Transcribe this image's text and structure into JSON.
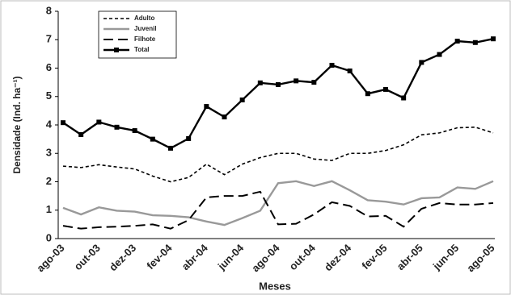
{
  "chart_data": {
    "type": "line",
    "x_label": "Meses",
    "y_label": "Densidade (Ind. ha⁻¹)",
    "categories": [
      "ago-03",
      null,
      "out-03",
      null,
      "dez-03",
      null,
      "fev-04",
      null,
      "abr-04",
      null,
      "jun-04",
      null,
      "ago-04",
      null,
      "out-04",
      null,
      "dez-04",
      null,
      "fev-05",
      null,
      "abr-05",
      null,
      "jun-05",
      null,
      "ago-05"
    ],
    "ylim": [
      0,
      8
    ],
    "yticks": [
      0,
      1,
      2,
      3,
      4,
      5,
      6,
      7,
      8
    ],
    "legend": "top-left",
    "series": [
      {
        "name": "Adulto",
        "color": "#000000",
        "style": "dashed",
        "values": [
          2.55,
          2.5,
          2.6,
          2.52,
          2.45,
          2.2,
          2.0,
          2.15,
          2.62,
          2.25,
          2.62,
          2.85,
          3.0,
          3.0,
          2.8,
          2.75,
          3.0,
          3.0,
          3.1,
          3.3,
          3.65,
          3.72,
          3.9,
          3.92,
          3.72
        ]
      },
      {
        "name": "Juvenil",
        "color": "#999999",
        "style": "solid",
        "values": [
          1.08,
          0.85,
          1.1,
          0.98,
          0.95,
          0.82,
          0.8,
          0.75,
          0.6,
          0.48,
          0.72,
          0.98,
          1.95,
          2.02,
          1.85,
          2.02,
          1.7,
          1.35,
          1.3,
          1.2,
          1.42,
          1.45,
          1.8,
          1.75,
          2.02
        ]
      },
      {
        "name": "Filhote",
        "color": "#000000",
        "style": "long-dash",
        "values": [
          0.45,
          0.35,
          0.4,
          0.42,
          0.45,
          0.5,
          0.35,
          0.65,
          1.45,
          1.5,
          1.5,
          1.65,
          0.5,
          0.52,
          0.85,
          1.28,
          1.15,
          0.78,
          0.8,
          0.42,
          1.05,
          1.25,
          1.2,
          1.2,
          1.25
        ]
      },
      {
        "name": "Total",
        "color": "#000000",
        "style": "solid-square",
        "values": [
          4.08,
          3.66,
          4.1,
          3.92,
          3.8,
          3.5,
          3.18,
          3.52,
          4.65,
          4.28,
          4.88,
          5.48,
          5.42,
          5.55,
          5.5,
          6.1,
          5.9,
          5.1,
          5.25,
          4.95,
          6.2,
          6.48,
          6.95,
          6.9,
          7.03
        ]
      }
    ]
  }
}
